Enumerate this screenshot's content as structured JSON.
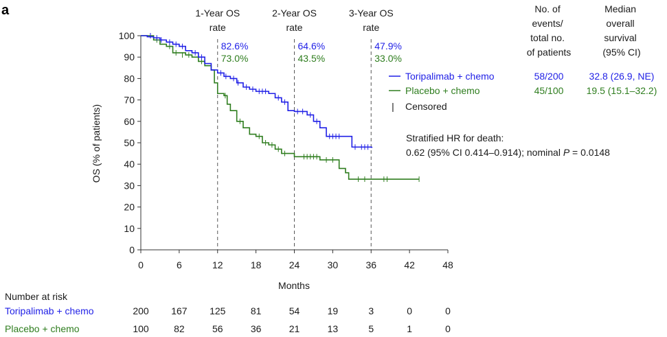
{
  "panel_label": "a",
  "colors": {
    "toripalimab": "#1f1fe6",
    "placebo": "#2e7d1e",
    "axis": "#333333",
    "guide": "#555555"
  },
  "chart_data": {
    "type": "line",
    "chart_subtype": "kaplan-meier",
    "xlabel": "Months",
    "ylabel": "OS (% of patients)",
    "xlim": [
      0,
      48
    ],
    "ylim": [
      0,
      100
    ],
    "xticks": [
      "0",
      "6",
      "12",
      "18",
      "24",
      "30",
      "36",
      "42",
      "48"
    ],
    "yticks": [
      "0",
      "10",
      "20",
      "30",
      "40",
      "50",
      "60",
      "70",
      "80",
      "90",
      "100"
    ],
    "landmarks": [
      {
        "month": 12,
        "label_line1": "1-Year OS",
        "label_line2": "rate",
        "toripalimab": "82.6%",
        "placebo": "73.0%"
      },
      {
        "month": 24,
        "label_line1": "2-Year OS",
        "label_line2": "rate",
        "toripalimab": "64.6%",
        "placebo": "43.5%"
      },
      {
        "month": 36,
        "label_line1": "3-Year OS",
        "label_line2": "rate",
        "toripalimab": "47.9%",
        "placebo": "33.0%"
      }
    ],
    "series": [
      {
        "name": "Toripalimab + chemo",
        "events_total": "58/200",
        "median": "32.8 (26.9, NE)",
        "steps": [
          [
            0,
            100
          ],
          [
            1,
            99.5
          ],
          [
            2,
            99
          ],
          [
            3,
            98
          ],
          [
            4,
            97
          ],
          [
            5,
            96
          ],
          [
            6,
            95
          ],
          [
            7,
            93
          ],
          [
            8,
            92
          ],
          [
            9,
            90
          ],
          [
            10,
            87
          ],
          [
            11,
            84
          ],
          [
            12,
            82.6
          ],
          [
            13,
            81
          ],
          [
            14,
            80
          ],
          [
            15,
            78
          ],
          [
            16,
            76
          ],
          [
            17,
            75
          ],
          [
            18,
            74
          ],
          [
            20,
            73
          ],
          [
            21,
            71
          ],
          [
            22,
            69
          ],
          [
            23,
            65
          ],
          [
            24,
            64.6
          ],
          [
            26,
            63
          ],
          [
            27,
            60
          ],
          [
            28,
            57
          ],
          [
            29,
            53
          ],
          [
            32,
            53
          ],
          [
            33,
            48
          ],
          [
            36,
            47.9
          ]
        ],
        "end": 36.2,
        "censored": [
          [
            1.5,
            100
          ],
          [
            2.5,
            99
          ],
          [
            3.2,
            98
          ],
          [
            4.5,
            97
          ],
          [
            5.5,
            96
          ],
          [
            6.5,
            95
          ],
          [
            8.5,
            92
          ],
          [
            9.5,
            90
          ],
          [
            12.5,
            82.6
          ],
          [
            13.3,
            81
          ],
          [
            14.5,
            80
          ],
          [
            15.2,
            78
          ],
          [
            16.5,
            76
          ],
          [
            17.5,
            75
          ],
          [
            18.5,
            74
          ],
          [
            19,
            74
          ],
          [
            19.5,
            74
          ],
          [
            21.5,
            71
          ],
          [
            22.5,
            69
          ],
          [
            24.5,
            64.6
          ],
          [
            25.3,
            64.6
          ],
          [
            26.5,
            63
          ],
          [
            27.5,
            60
          ],
          [
            29.5,
            53
          ],
          [
            30,
            53
          ],
          [
            30.5,
            53
          ],
          [
            31,
            53
          ],
          [
            33.5,
            48
          ],
          [
            34.5,
            48
          ],
          [
            35,
            48
          ],
          [
            35.5,
            48
          ]
        ]
      },
      {
        "name": "Placebo + chemo",
        "events_total": "45/100",
        "median": "19.5 (15.1–32.2)",
        "steps": [
          [
            0,
            100
          ],
          [
            2,
            98
          ],
          [
            3,
            96
          ],
          [
            4,
            95
          ],
          [
            5,
            92
          ],
          [
            7,
            91
          ],
          [
            8,
            90
          ],
          [
            9,
            88
          ],
          [
            10,
            86
          ],
          [
            11,
            84
          ],
          [
            11.5,
            78
          ],
          [
            12,
            73
          ],
          [
            13,
            72
          ],
          [
            13.5,
            68
          ],
          [
            14,
            65
          ],
          [
            15,
            60
          ],
          [
            16,
            57
          ],
          [
            17,
            54
          ],
          [
            18,
            53
          ],
          [
            19,
            50
          ],
          [
            20,
            49
          ],
          [
            21,
            47
          ],
          [
            22,
            45
          ],
          [
            24,
            43.5
          ],
          [
            28,
            42
          ],
          [
            31,
            38
          ],
          [
            32,
            36
          ],
          [
            32.5,
            33
          ],
          [
            43.5,
            33
          ]
        ],
        "end": 43.5,
        "censored": [
          [
            2.5,
            98
          ],
          [
            4.5,
            95
          ],
          [
            5.5,
            92
          ],
          [
            6.5,
            91
          ],
          [
            7.5,
            91
          ],
          [
            9.5,
            88
          ],
          [
            13.2,
            72
          ],
          [
            15.5,
            60
          ],
          [
            18.5,
            53
          ],
          [
            19.5,
            50
          ],
          [
            20.5,
            49
          ],
          [
            21.5,
            47
          ],
          [
            22.5,
            45
          ],
          [
            25.5,
            43.5
          ],
          [
            26,
            43.5
          ],
          [
            26.5,
            43.5
          ],
          [
            27,
            43.5
          ],
          [
            27.5,
            43.5
          ],
          [
            29,
            42
          ],
          [
            30,
            42
          ],
          [
            34,
            33
          ],
          [
            35,
            33
          ],
          [
            38,
            33
          ],
          [
            38.5,
            33
          ],
          [
            43.5,
            33
          ]
        ]
      }
    ]
  },
  "legend": {
    "header": [
      "No. of",
      "events/",
      "total no.",
      "of patients"
    ],
    "median_header": [
      "Median",
      "overall",
      "survival",
      "(95% CI)"
    ],
    "censored_label": "Censored",
    "censored_symbol": "|"
  },
  "hr": {
    "line1": "Stratified HR for death:",
    "line2_prefix": "0.62 (95% CI 0.414–0.914); nominal ",
    "p_symbol": "P",
    "line2_suffix": " = 0.0148"
  },
  "risk_table": {
    "title": "Number at risk",
    "rows": [
      {
        "name": "Toripalimab + chemo",
        "values": [
          "200",
          "167",
          "125",
          "81",
          "54",
          "19",
          "3",
          "0",
          "0"
        ]
      },
      {
        "name": "Placebo + chemo",
        "values": [
          "100",
          "82",
          "56",
          "36",
          "21",
          "13",
          "5",
          "1",
          "0"
        ]
      }
    ]
  }
}
